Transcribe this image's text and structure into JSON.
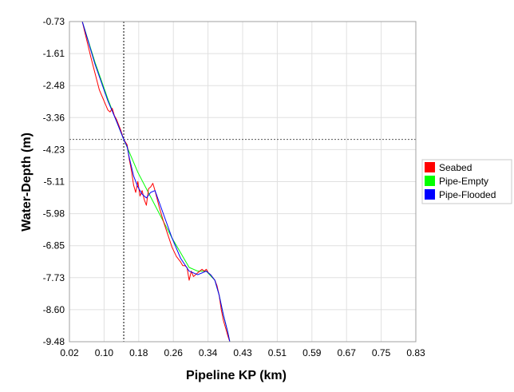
{
  "chart_data": {
    "type": "line",
    "xlabel": "Pipeline KP (km)",
    "ylabel": "Water-Depth (m)",
    "xlim": [
      0.02,
      0.83
    ],
    "ylim": [
      -9.48,
      -0.73
    ],
    "x_ticks": [
      "0.02",
      "0.10",
      "0.18",
      "0.26",
      "0.34",
      "0.43",
      "0.51",
      "0.59",
      "0.67",
      "0.75",
      "0.83"
    ],
    "y_ticks": [
      "-0.73",
      "-1.61",
      "-2.48",
      "-3.36",
      "-4.23",
      "-5.11",
      "-5.98",
      "-6.85",
      "-7.73",
      "-8.60",
      "-9.48"
    ],
    "grid": true,
    "legend_position": "right",
    "crosshair": {
      "x": 0.147,
      "y": -3.95
    },
    "series": [
      {
        "name": "Seabed",
        "color": "#ff0000",
        "x": [
          0.05,
          0.07,
          0.09,
          0.11,
          0.115,
          0.12,
          0.125,
          0.13,
          0.14,
          0.147,
          0.155,
          0.16,
          0.165,
          0.17,
          0.175,
          0.18,
          0.185,
          0.19,
          0.195,
          0.2,
          0.205,
          0.21,
          0.215,
          0.22,
          0.23,
          0.24,
          0.25,
          0.26,
          0.27,
          0.28,
          0.285,
          0.29,
          0.295,
          0.3,
          0.305,
          0.31,
          0.32,
          0.33,
          0.335,
          0.34,
          0.345,
          0.35,
          0.36,
          0.365,
          0.37,
          0.375,
          0.38,
          0.385,
          0.39,
          0.395
        ],
        "y": [
          -0.73,
          -1.7,
          -2.6,
          -3.15,
          -3.2,
          -3.1,
          -3.3,
          -3.4,
          -3.7,
          -3.95,
          -4.1,
          -4.5,
          -4.8,
          -5.2,
          -5.4,
          -5.1,
          -5.5,
          -5.35,
          -5.6,
          -5.75,
          -5.3,
          -5.25,
          -5.15,
          -5.35,
          -5.8,
          -6.2,
          -6.55,
          -6.9,
          -7.15,
          -7.3,
          -7.4,
          -7.4,
          -7.45,
          -7.8,
          -7.55,
          -7.7,
          -7.6,
          -7.5,
          -7.55,
          -7.5,
          -7.6,
          -7.65,
          -7.8,
          -7.95,
          -8.2,
          -8.6,
          -8.9,
          -9.1,
          -9.3,
          -9.48
        ]
      },
      {
        "name": "Pipe-Empty",
        "color": "#00ff00",
        "x": [
          0.05,
          0.08,
          0.11,
          0.13,
          0.147,
          0.16,
          0.18,
          0.2,
          0.22,
          0.24,
          0.26,
          0.28,
          0.3,
          0.32,
          0.34,
          0.36,
          0.37,
          0.38,
          0.39,
          0.395
        ],
        "y": [
          -0.73,
          -1.85,
          -2.85,
          -3.45,
          -3.95,
          -4.3,
          -4.85,
          -5.3,
          -5.75,
          -6.2,
          -6.65,
          -7.05,
          -7.45,
          -7.55,
          -7.55,
          -7.8,
          -8.2,
          -8.75,
          -9.2,
          -9.48
        ]
      },
      {
        "name": "Pipe-Flooded",
        "color": "#0000ff",
        "x": [
          0.05,
          0.08,
          0.11,
          0.13,
          0.147,
          0.155,
          0.16,
          0.17,
          0.18,
          0.19,
          0.2,
          0.21,
          0.22,
          0.24,
          0.26,
          0.28,
          0.3,
          0.32,
          0.34,
          0.35,
          0.36,
          0.37,
          0.38,
          0.39,
          0.395
        ],
        "y": [
          -0.73,
          -1.9,
          -2.9,
          -3.45,
          -3.95,
          -4.15,
          -4.45,
          -4.95,
          -5.25,
          -5.45,
          -5.55,
          -5.4,
          -5.35,
          -6.0,
          -6.65,
          -7.2,
          -7.55,
          -7.65,
          -7.55,
          -7.65,
          -7.8,
          -8.2,
          -8.75,
          -9.2,
          -9.48
        ]
      }
    ]
  }
}
